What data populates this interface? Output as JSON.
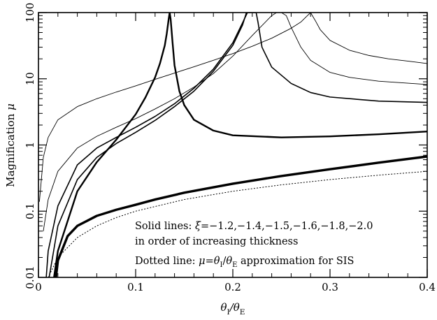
{
  "chart_data": {
    "type": "line",
    "xlabel": "θ_I/θ_E",
    "ylabel": "Magnification μ",
    "xlim": [
      0,
      0.4
    ],
    "ylim": [
      0.01,
      100
    ],
    "yscale": "log",
    "x_ticks": [
      0,
      0.1,
      0.2,
      0.3,
      0.4
    ],
    "x_tick_labels": [
      "0",
      "0.1",
      "0.2",
      "0.3",
      "0.4"
    ],
    "y_ticks": [
      0.01,
      0.1,
      1,
      10,
      100
    ],
    "y_tick_labels": [
      "0.01",
      "0.1",
      "1",
      "10",
      "100"
    ],
    "grid": false,
    "annotations": [
      "Solid lines: ξ=−1.2,−1.4,−1.5,−1.6,−1.8,−2.0",
      "in order of increasing thickness",
      "Dotted line: μ=θ_I/θ_E approximation for SIS"
    ],
    "series": [
      {
        "xi": -1.2,
        "style": "solid",
        "width": 0.9,
        "x": [
          0.001,
          0.005,
          0.01,
          0.02,
          0.04,
          0.06,
          0.08,
          0.1,
          0.12,
          0.14,
          0.16,
          0.18,
          0.2,
          0.22,
          0.24,
          0.26,
          0.27,
          0.275,
          0.28,
          0.285,
          0.29,
          0.3,
          0.32,
          0.34,
          0.36,
          0.38,
          0.4
        ],
        "y": [
          0.14,
          0.65,
          1.3,
          2.4,
          3.8,
          5.0,
          6.3,
          7.8,
          9.8,
          12.2,
          15.2,
          19,
          24,
          31,
          41,
          58,
          72,
          85,
          100,
          75,
          55,
          38,
          27,
          22.5,
          20,
          18.5,
          17
        ]
      },
      {
        "xi": -1.4,
        "style": "solid",
        "width": 0.9,
        "x": [
          0.005,
          0.01,
          0.02,
          0.04,
          0.06,
          0.08,
          0.1,
          0.12,
          0.14,
          0.16,
          0.18,
          0.2,
          0.22,
          0.24,
          0.245,
          0.25,
          0.255,
          0.26,
          0.27,
          0.28,
          0.3,
          0.32,
          0.35,
          0.4
        ],
        "y": [
          0.05,
          0.15,
          0.4,
          0.9,
          1.35,
          1.85,
          2.5,
          3.5,
          5,
          7.5,
          12,
          22,
          45,
          90,
          100,
          100,
          90,
          60,
          30,
          19,
          12.5,
          10.5,
          9.2,
          8.2
        ]
      },
      {
        "xi": -1.5,
        "style": "solid",
        "width": 1.6,
        "x": [
          0.008,
          0.01,
          0.02,
          0.04,
          0.06,
          0.08,
          0.1,
          0.12,
          0.14,
          0.16,
          0.18,
          0.2,
          0.21,
          0.215,
          0.218,
          0.22,
          0.221,
          0.222,
          0.224,
          0.226,
          0.23,
          0.24,
          0.26,
          0.28,
          0.3,
          0.35,
          0.4
        ],
        "y": [
          0.01,
          0.025,
          0.12,
          0.5,
          0.9,
          1.3,
          1.85,
          2.7,
          4.2,
          7.2,
          14,
          35,
          70,
          100,
          100,
          100,
          100,
          100,
          100,
          70,
          30,
          15,
          8.5,
          6.2,
          5.3,
          4.6,
          4.4
        ]
      },
      {
        "xi": -1.6,
        "style": "solid",
        "width": 1.6,
        "x": [
          0.011,
          0.02,
          0.04,
          0.06,
          0.08,
          0.1,
          0.12,
          0.14,
          0.16,
          0.18,
          0.2,
          0.21,
          0.214,
          0.216,
          0.218,
          0.22,
          0.222,
          0.224
        ],
        "y": [
          0.01,
          0.06,
          0.3,
          0.65,
          1.05,
          1.55,
          2.35,
          3.8,
          6.5,
          13,
          32,
          65,
          100,
          100,
          100,
          100,
          100,
          100
        ]
      },
      {
        "xi": -1.8,
        "style": "solid",
        "width": 2.4,
        "x": [
          0.016,
          0.02,
          0.04,
          0.06,
          0.08,
          0.1,
          0.11,
          0.12,
          0.125,
          0.13,
          0.132,
          0.134,
          0.135,
          0.136,
          0.138,
          0.14,
          0.145,
          0.15,
          0.16,
          0.18,
          0.2,
          0.25,
          0.3,
          0.35,
          0.4
        ],
        "y": [
          0.01,
          0.025,
          0.2,
          0.55,
          1.2,
          2.9,
          5.2,
          10.5,
          17,
          32,
          48,
          80,
          100,
          80,
          35,
          16,
          6.5,
          4,
          2.4,
          1.65,
          1.4,
          1.3,
          1.35,
          1.45,
          1.6
        ]
      },
      {
        "xi": -2.0,
        "style": "solid",
        "width": 3.4,
        "x": [
          0.018,
          0.02,
          0.03,
          0.04,
          0.06,
          0.08,
          0.1,
          0.12,
          0.15,
          0.2,
          0.25,
          0.3,
          0.35,
          0.4
        ],
        "y": [
          0.01,
          0.018,
          0.042,
          0.06,
          0.085,
          0.105,
          0.125,
          0.15,
          0.19,
          0.26,
          0.34,
          0.43,
          0.54,
          0.67
        ]
      },
      {
        "name": "μ=θ_I/θ_E approximation for SIS",
        "style": "dotted",
        "width": 1.0,
        "x": [
          0.01,
          0.02,
          0.04,
          0.06,
          0.08,
          0.1,
          0.15,
          0.2,
          0.25,
          0.3,
          0.35,
          0.4
        ],
        "y": [
          0.01,
          0.02,
          0.04,
          0.06,
          0.08,
          0.1,
          0.15,
          0.2,
          0.25,
          0.3,
          0.35,
          0.4
        ]
      }
    ]
  }
}
